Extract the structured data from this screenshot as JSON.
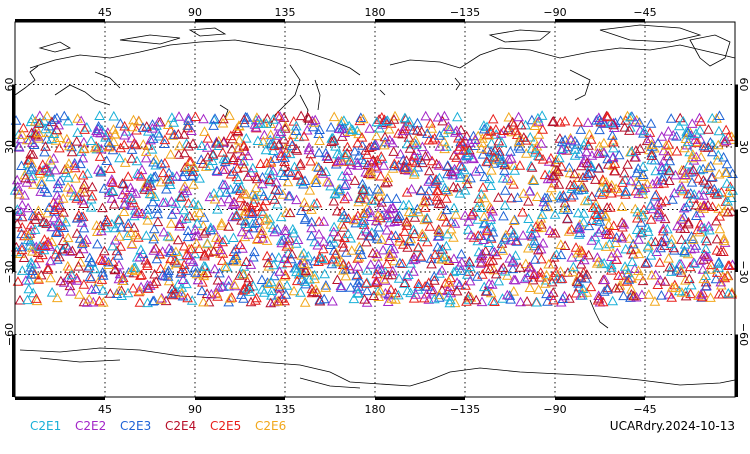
{
  "map": {
    "lon_ticks_top": [
      "45",
      "90",
      "135",
      "180",
      "−135",
      "−90",
      "−45"
    ],
    "lon_ticks_bottom": [
      "45",
      "90",
      "135",
      "180",
      "−135",
      "−90",
      "−45"
    ],
    "lat_ticks_left": [
      "60",
      "30",
      "0",
      "−30",
      "−60"
    ],
    "lat_ticks_right": [
      "60",
      "30",
      "0",
      "−30",
      "−60"
    ],
    "projection": "cylindrical",
    "lon_range": [
      0,
      360
    ],
    "lat_range": [
      -90,
      90
    ],
    "grid": "dotted",
    "marker": "open-triangle",
    "point_lat_band": [
      -45,
      45
    ]
  },
  "legend": {
    "items": [
      {
        "label": "C2E1",
        "color": "#1ab0d8"
      },
      {
        "label": "C2E2",
        "color": "#a326c8"
      },
      {
        "label": "C2E3",
        "color": "#1f63d6"
      },
      {
        "label": "C2E4",
        "color": "#b8102a"
      },
      {
        "label": "C2E5",
        "color": "#e8201c"
      },
      {
        "label": "C2E6",
        "color": "#f2a81d"
      }
    ]
  },
  "footer": {
    "dataset_date": "UCARdry.2024-10-13"
  }
}
